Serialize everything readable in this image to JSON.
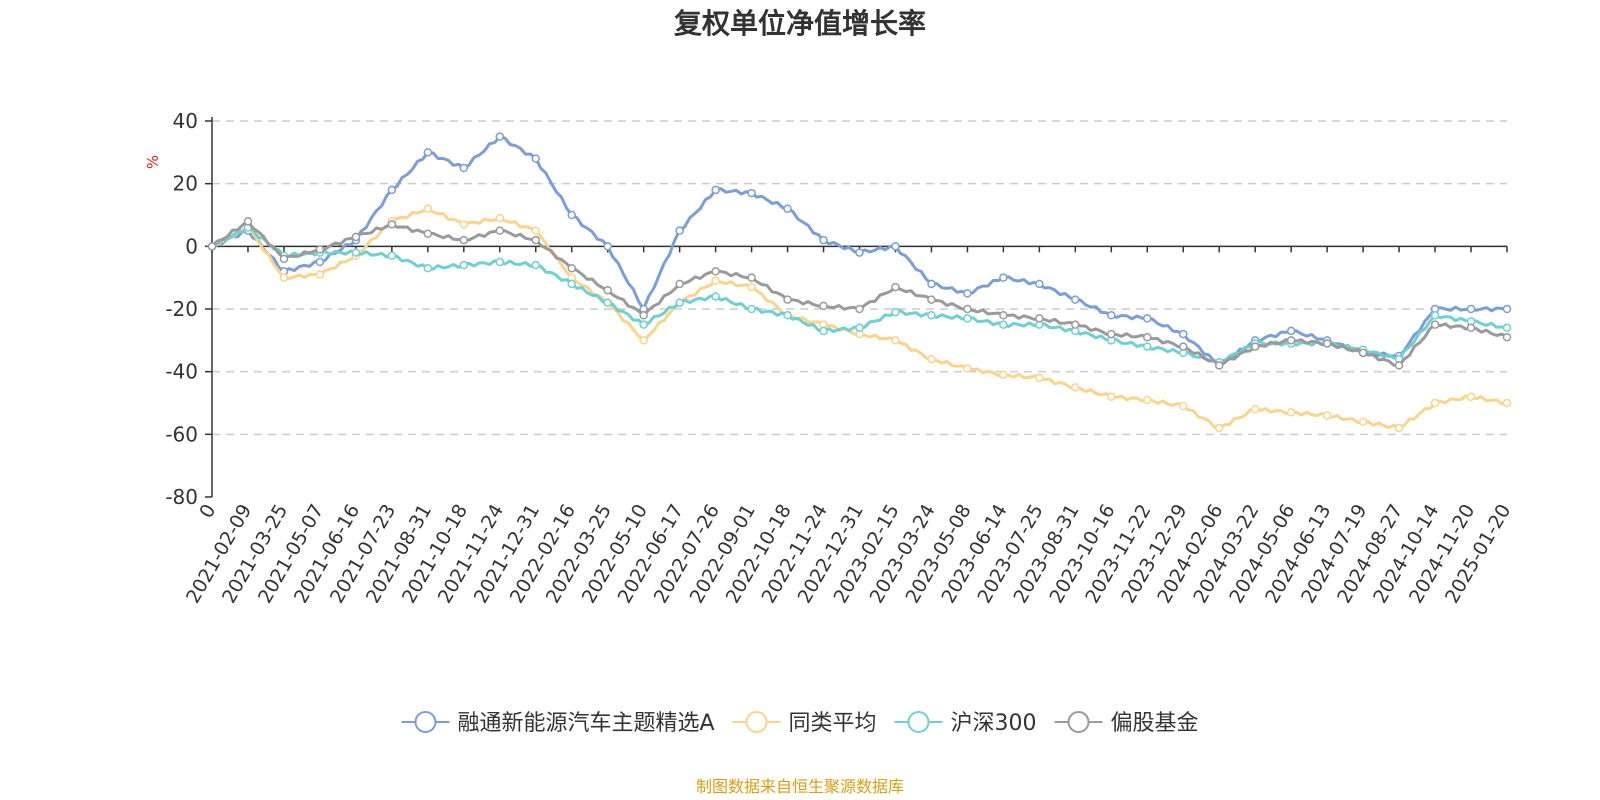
{
  "chart_data": {
    "type": "line",
    "title": "复权单位净值增长率",
    "ylabel": "%",
    "ylim": [
      -80,
      40
    ],
    "yticks": [
      40,
      20,
      0,
      -20,
      -40,
      -60,
      -80
    ],
    "x_labels": [
      "0",
      "2021-02-09",
      "2021-03-25",
      "2021-05-07",
      "2021-06-16",
      "2021-07-23",
      "2021-08-31",
      "2021-10-18",
      "2021-11-24",
      "2021-12-31",
      "2022-02-16",
      "2022-03-25",
      "2022-05-10",
      "2022-06-17",
      "2022-07-26",
      "2022-09-01",
      "2022-10-18",
      "2022-11-24",
      "2022-12-31",
      "2023-02-15",
      "2023-03-24",
      "2023-05-08",
      "2023-06-14",
      "2023-07-25",
      "2023-08-31",
      "2023-10-16",
      "2023-11-22",
      "2023-12-29",
      "2024-02-06",
      "2024-03-22",
      "2024-05-06",
      "2024-06-13",
      "2024-07-19",
      "2024-08-27",
      "2024-10-14",
      "2024-11-20",
      "2025-01-20"
    ],
    "series": [
      {
        "name": "融通新能源汽车主题精选A",
        "color": "#7b9ed6",
        "values": [
          0,
          5,
          -8,
          -5,
          2,
          18,
          30,
          25,
          35,
          28,
          10,
          0,
          -20,
          5,
          18,
          17,
          12,
          2,
          -2,
          0,
          -12,
          -15,
          -10,
          -12,
          -17,
          -22,
          -23,
          -28,
          -38,
          -30,
          -27,
          -30,
          -34,
          -35,
          -20,
          -20,
          -20
        ]
      },
      {
        "name": "同类平均",
        "color": "#f9d48a",
        "values": [
          0,
          6,
          -10,
          -9,
          -3,
          8,
          12,
          7,
          9,
          5,
          -10,
          -18,
          -30,
          -18,
          -11,
          -13,
          -22,
          -25,
          -28,
          -30,
          -36,
          -39,
          -41,
          -42,
          -45,
          -48,
          -49,
          -51,
          -58,
          -52,
          -53,
          -54,
          -56,
          -58,
          -50,
          -48,
          -50
        ]
      },
      {
        "name": "沪深300",
        "color": "#6ed0d0",
        "values": [
          0,
          6,
          -3,
          -2,
          -2,
          -3,
          -7,
          -6,
          -5,
          -6,
          -12,
          -18,
          -25,
          -18,
          -16,
          -20,
          -22,
          -27,
          -26,
          -21,
          -22,
          -23,
          -25,
          -25,
          -27,
          -30,
          -32,
          -34,
          -37,
          -31,
          -31,
          -31,
          -33,
          -36,
          -22,
          -24,
          -26
        ]
      },
      {
        "name": "偏股基金",
        "color": "#9a9a9a",
        "values": [
          0,
          8,
          -4,
          -1,
          3,
          7,
          4,
          2,
          5,
          2,
          -7,
          -14,
          -22,
          -12,
          -8,
          -10,
          -17,
          -19,
          -20,
          -13,
          -17,
          -20,
          -22,
          -23,
          -25,
          -28,
          -29,
          -32,
          -38,
          -32,
          -30,
          -31,
          -34,
          -38,
          -25,
          -26,
          -29
        ]
      }
    ],
    "legend_position": "bottom",
    "grid": true,
    "source_note": "制图数据来自恒生聚源数据库"
  }
}
